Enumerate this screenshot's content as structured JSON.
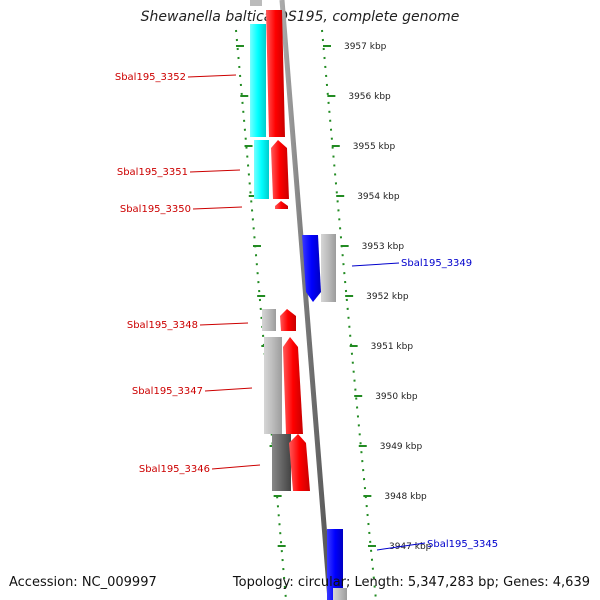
{
  "title": "Shewanella baltica OS195, complete genome",
  "footer": {
    "accession": "Accession: NC_009997",
    "topology": "Topology: circular; Length: 5,347,283 bp; Genes: 4,639"
  },
  "colors": {
    "forward_gene": "#ff0000",
    "reverse_gene": "#0000ff",
    "cds_light": "#bbbbbb",
    "cds_dark": "#666666",
    "rna_cyan": "#00ffff",
    "tick_green": "#228B22",
    "label_red": "#cc0000",
    "label_blue": "#0000cc"
  },
  "scale_labels": [
    "3957 kbp",
    "3956 kbp",
    "3955 kbp",
    "3954 kbp",
    "3953 kbp",
    "3952 kbp",
    "3951 kbp",
    "3950 kbp",
    "3949 kbp",
    "3948 kbp",
    "3947 kbp"
  ],
  "gene_labels": [
    {
      "text": "Sbal195_3352",
      "strand": "forward"
    },
    {
      "text": "Sbal195_3351",
      "strand": "forward"
    },
    {
      "text": "Sbal195_3350",
      "strand": "forward"
    },
    {
      "text": "Sbal195_3349",
      "strand": "reverse"
    },
    {
      "text": "Sbal195_3348",
      "strand": "forward"
    },
    {
      "text": "Sbal195_3347",
      "strand": "forward"
    },
    {
      "text": "Sbal195_3346",
      "strand": "forward"
    },
    {
      "text": "Sbal195_3345",
      "strand": "reverse"
    }
  ]
}
